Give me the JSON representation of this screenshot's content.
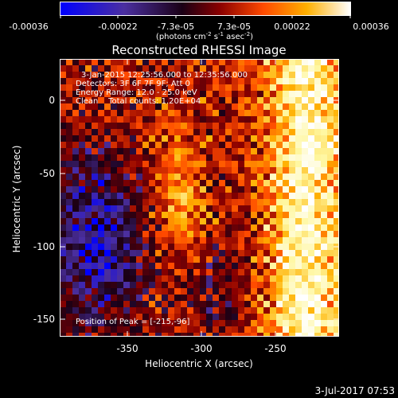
{
  "colorbar": {
    "tick_labels": [
      "-0.00036",
      "-0.00022",
      "-7.3e-05",
      "7.3e-05",
      "0.00022",
      "0.00036"
    ],
    "units_main": "(photons cm",
    "units_exp1": "-2",
    "units_mid": " s",
    "units_exp2": "-1",
    "units_end": " asec",
    "units_exp3": "-2",
    "units_close": ")"
  },
  "figure": {
    "title": "Reconstructed RHESSI Image",
    "xlabel": "Heliocentric X (arcsec)",
    "ylabel": "Heliocentric Y (arcsec)",
    "timestamp": "3-Jul-2017 07:53"
  },
  "annotations": {
    "time_range": "3-Jan-2015 12:25:56.000 to 12:35:56.000",
    "detectors": "Detectors: 3F 6F 7F 9F; Att 0",
    "energy_range": "Energy Range: 12.0 - 25.0 keV",
    "clean_line": "Clean    Total counts: 1.20E+04",
    "peak_position": "Position of Peak = [-215,-96]"
  },
  "axes": {
    "x_ticks": [
      "-350",
      "-300",
      "-250"
    ],
    "y_ticks": [
      "0",
      "-50",
      "-100",
      "-150"
    ],
    "x_range": [
      -395,
      -208
    ],
    "y_range": [
      -164,
      22
    ]
  },
  "colors": {
    "background": "#000000",
    "text": "#ffffff",
    "colormap": [
      "#0000ff",
      "#4b2fa0",
      "#1a0015",
      "#8a0000",
      "#ff4a00",
      "#ffb000",
      "#fff7a0",
      "#ffffff"
    ]
  }
}
